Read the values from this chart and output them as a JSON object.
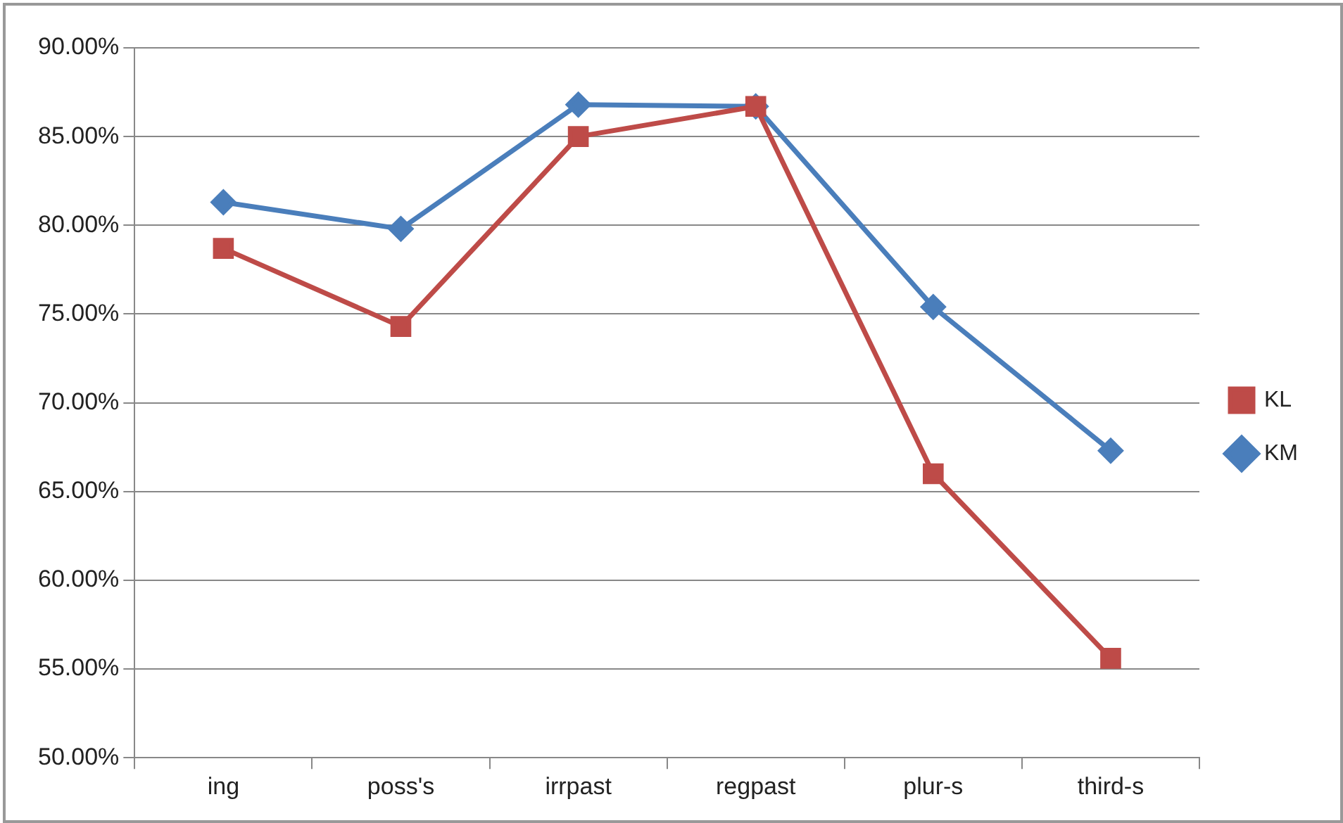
{
  "chart_data": {
    "type": "line",
    "categories": [
      "ing",
      "poss's",
      "irrpast",
      "regpast",
      "plur-s",
      "third-s"
    ],
    "series": [
      {
        "name": "KM",
        "color": "#4a7ebb",
        "marker": "diamond",
        "values": [
          81.3,
          79.8,
          86.8,
          86.7,
          75.4,
          67.3
        ]
      },
      {
        "name": "KL",
        "color": "#be4b48",
        "marker": "square",
        "values": [
          78.7,
          74.3,
          85.0,
          86.7,
          66.0,
          55.6
        ]
      }
    ],
    "ylim": [
      50,
      90
    ],
    "yticks": [
      {
        "value": 50,
        "label": "50.00%"
      },
      {
        "value": 55,
        "label": "55.00%"
      },
      {
        "value": 60,
        "label": "60.00%"
      },
      {
        "value": 65,
        "label": "65.00%"
      },
      {
        "value": 70,
        "label": "70.00%"
      },
      {
        "value": 75,
        "label": "75.00%"
      },
      {
        "value": 80,
        "label": "80.00%"
      },
      {
        "value": 85,
        "label": "85.00%"
      },
      {
        "value": 90,
        "label": "90.00%"
      }
    ],
    "grid": "y",
    "legend": "right",
    "line_style": "solid"
  }
}
